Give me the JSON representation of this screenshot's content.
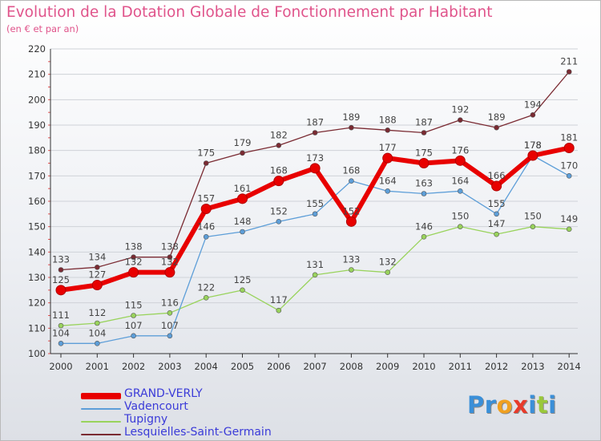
{
  "header": {
    "title": "Evolution de la Dotation Globale de Fonctionnement par Habitant",
    "subtitle": "(en € et par an)"
  },
  "logo": {
    "text": "Proxiti",
    "letters": [
      "P",
      "r",
      "o",
      "x",
      "i",
      "t",
      "i"
    ],
    "colors": [
      "#3a8fd8",
      "#3a8fd8",
      "#f0a020",
      "#e83a2a",
      "#3a8fd8",
      "#9ac83a",
      "#3a8fd8"
    ]
  },
  "chart_data": {
    "type": "line",
    "categories": [
      "2000",
      "2001",
      "2002",
      "2003",
      "2004",
      "2005",
      "2006",
      "2007",
      "2008",
      "2009",
      "2010",
      "2011",
      "2012",
      "2013",
      "2014"
    ],
    "ylim": [
      100,
      220
    ],
    "yticks": [
      100,
      110,
      120,
      130,
      140,
      150,
      160,
      170,
      180,
      190,
      200,
      210,
      220
    ],
    "grid": "horizontal",
    "legend_position": "bottom-left",
    "series": [
      {
        "name": "Lesquielles-Saint-Germain",
        "color": "#7a2a32",
        "width": 1.3,
        "values": [
          133,
          134,
          138,
          138,
          175,
          179,
          182,
          187,
          189,
          188,
          187,
          192,
          189,
          194,
          211
        ]
      },
      {
        "name": "Tupigny",
        "color": "#99d35c",
        "width": 1.3,
        "values": [
          111,
          112,
          115,
          116,
          122,
          125,
          117,
          131,
          133,
          132,
          146,
          150,
          147,
          150,
          149
        ]
      },
      {
        "name": "Vadencourt",
        "color": "#5d9ed8",
        "width": 1.3,
        "values": [
          104,
          104,
          107,
          107,
          146,
          148,
          152,
          155,
          168,
          164,
          163,
          164,
          155,
          178,
          170
        ]
      },
      {
        "name": "GRAND-VERLY",
        "color": "#e80000",
        "width": 6,
        "values": [
          125,
          127,
          132,
          132,
          157,
          161,
          168,
          173,
          152,
          177,
          175,
          176,
          166,
          178,
          181
        ]
      }
    ],
    "legend_order": [
      "GRAND-VERLY",
      "Vadencourt",
      "Tupigny",
      "Lesquielles-Saint-Germain"
    ]
  }
}
